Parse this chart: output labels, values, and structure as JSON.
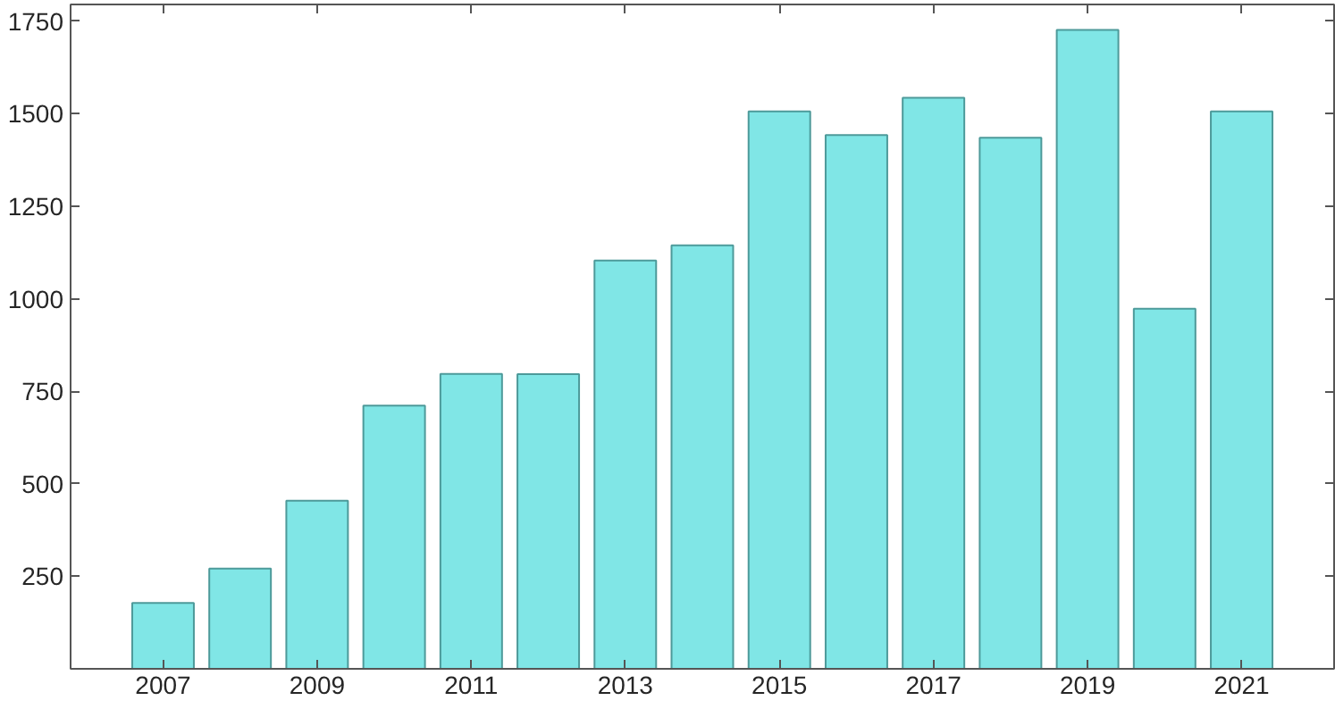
{
  "chart_data": {
    "type": "bar",
    "x": [
      2007,
      2008,
      2009,
      2010,
      2011,
      2012,
      2013,
      2014,
      2015,
      2016,
      2017,
      2018,
      2019,
      2020,
      2021
    ],
    "values": [
      178,
      271,
      454,
      711,
      797,
      796,
      1103,
      1144,
      1506,
      1442,
      1543,
      1435,
      1726,
      973,
      1506
    ],
    "color": "#80e6e6",
    "xlim": [
      2005.8,
      2022.2
    ],
    "xticks": [
      2007,
      2009,
      2011,
      2013,
      2015,
      2017,
      2019,
      2021
    ],
    "ylim": [
      0,
      1795
    ],
    "yticks": [
      250,
      500,
      750,
      1000,
      1250,
      1500,
      1750
    ],
    "grid": false
  }
}
